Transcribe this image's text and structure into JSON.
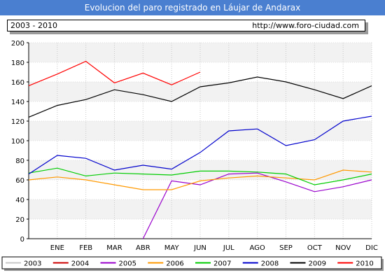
{
  "header": {
    "title": "Evolucion del paro registrado en Láujar de Andarax",
    "period": "2003 - 2010",
    "url": "http://www.foro-ciudad.com"
  },
  "chart_data": {
    "type": "line",
    "categories": [
      "ENE",
      "FEB",
      "MAR",
      "ABR",
      "MAY",
      "JUN",
      "JUL",
      "AGO",
      "SEP",
      "OCT",
      "NOV",
      "DIC"
    ],
    "ylim": [
      0,
      200
    ],
    "yticks": [
      0,
      20,
      40,
      60,
      80,
      100,
      120,
      140,
      160,
      180,
      200
    ],
    "grid": "horizontal bands",
    "legend_position": "bottom",
    "series": [
      {
        "name": "2003",
        "color": "#c8c8c8",
        "x": [],
        "values": []
      },
      {
        "name": "2004",
        "color": "#cc0000",
        "x": [],
        "values": []
      },
      {
        "name": "2005",
        "color": "#9900cc",
        "x": [
          4,
          5,
          6,
          7,
          8,
          9,
          10,
          11,
          12
        ],
        "values": [
          0,
          59,
          55,
          66,
          67,
          58,
          48,
          53,
          60
        ]
      },
      {
        "name": "2006",
        "color": "#ff9900",
        "x": [
          0,
          1,
          2,
          3,
          4,
          5,
          6,
          7,
          8,
          9,
          10,
          11,
          12
        ],
        "values": [
          60,
          63,
          60,
          55,
          50,
          50,
          59,
          62,
          64,
          62,
          60,
          70,
          68
        ]
      },
      {
        "name": "2007",
        "color": "#00cc00",
        "x": [
          0,
          1,
          2,
          3,
          4,
          5,
          6,
          7,
          8,
          9,
          10,
          11,
          12
        ],
        "values": [
          67,
          72,
          64,
          67,
          66,
          65,
          69,
          69,
          68,
          66,
          55,
          60,
          66
        ]
      },
      {
        "name": "2008",
        "color": "#0000cc",
        "x": [
          0,
          1,
          2,
          3,
          4,
          5,
          6,
          7,
          8,
          9,
          10,
          11,
          12
        ],
        "values": [
          66,
          85,
          82,
          70,
          75,
          71,
          88,
          110,
          112,
          95,
          101,
          120,
          125
        ]
      },
      {
        "name": "2009",
        "color": "#000000",
        "x": [
          0,
          1,
          2,
          3,
          4,
          5,
          6,
          7,
          8,
          9,
          10,
          11,
          12
        ],
        "values": [
          124,
          136,
          142,
          152,
          147,
          140,
          155,
          159,
          165,
          160,
          152,
          143,
          156
        ]
      },
      {
        "name": "2010",
        "color": "#ff0000",
        "x": [
          0,
          1,
          2,
          3,
          4,
          5,
          6
        ],
        "values": [
          156,
          168,
          181,
          159,
          169,
          157,
          170
        ]
      }
    ]
  }
}
